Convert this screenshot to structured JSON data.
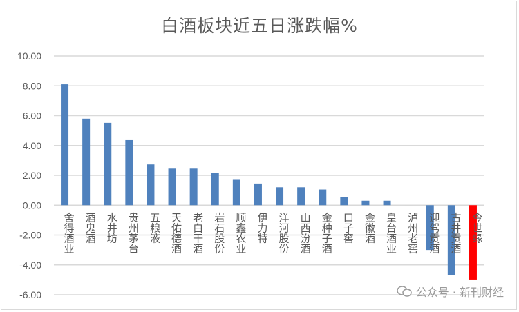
{
  "chart_data": {
    "type": "bar",
    "title": "白酒板块近五日涨跌幅%",
    "xlabel": "",
    "ylabel": "",
    "ylim": [
      -6,
      10
    ],
    "yticks": [
      "10.00",
      "8.00",
      "6.00",
      "4.00",
      "2.00",
      "0.00",
      "-2.00",
      "-4.00",
      "-6.00"
    ],
    "grid": true,
    "categories": [
      "舍得酒业",
      "酒鬼酒",
      "水井坊",
      "贵州茅台",
      "五粮液",
      "天佑德酒",
      "老白干酒",
      "岩石股份",
      "顺鑫农业",
      "伊力特",
      "洋河股份",
      "山西汾酒",
      "金种子酒",
      "口子窖",
      "金徽酒",
      "皇台酒业",
      "泸州老窖",
      "迎驾贡酒",
      "古井贡酒",
      "今世缘"
    ],
    "values": [
      8.1,
      5.8,
      5.52,
      4.36,
      2.73,
      2.45,
      2.45,
      2.17,
      1.7,
      1.45,
      1.2,
      1.2,
      1.05,
      0.55,
      0.3,
      0.3,
      0.0,
      -3.0,
      -4.68,
      -4.98
    ],
    "colors": {
      "default": "#4f81bd",
      "highlight": "#ff0000"
    },
    "highlight_index": 19
  },
  "watermark": "公众号 · 新刊财经"
}
